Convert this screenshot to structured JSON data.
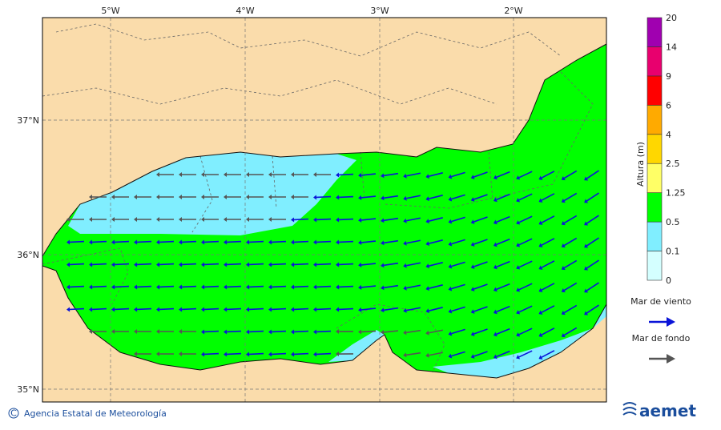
{
  "map": {
    "lon_labels": [
      "5°W",
      "4°W",
      "3°W",
      "2°W"
    ],
    "lat_labels": [
      "37°N",
      "36°N",
      "35°N"
    ],
    "colorbar": {
      "title": "Altura (m)",
      "levels": [
        0,
        0.1,
        0.5,
        1.25,
        2.5,
        4,
        6,
        9,
        14,
        20
      ],
      "colors": [
        "#d4ffff",
        "#80eeff",
        "#00ff00",
        "#ffff66",
        "#ffd700",
        "#ffaa00",
        "#ff0000",
        "#e8006e",
        "#a000b0"
      ]
    },
    "legend": [
      {
        "label": "Mar de viento",
        "color": "#0a14d8"
      },
      {
        "label": "Mar de fondo",
        "color": "#555555"
      }
    ],
    "footer": {
      "credit": "Agencia Estatal de Meteorología",
      "logo": "aemet"
    }
  }
}
